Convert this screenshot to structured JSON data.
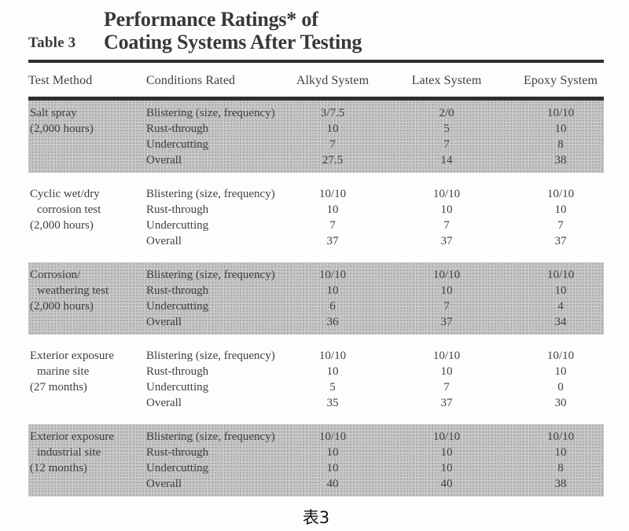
{
  "page": {
    "caption": "表3"
  },
  "colors": {
    "shade": "#c9c9c9",
    "rule": "#2f2f2f",
    "text": "#3f3f3f",
    "title": "#383838",
    "caption": "#141414",
    "paper": "#fdfdfd"
  },
  "table": {
    "label": "Table 3",
    "title_line1": "Performance Ratings* of",
    "title_line2": "Coating Systems After Testing",
    "columns": [
      "Test Method",
      "Conditions Rated",
      "Alkyd System",
      "Latex System",
      "Epoxy System"
    ],
    "sections": [
      {
        "test_method": "Salt spray (2,000 hours)",
        "method": [
          "Salt spray",
          "(2,000 hours)"
        ],
        "shaded": true,
        "rows": [
          [
            "Blistering (size, frequency)",
            "3/7.5",
            "2/0",
            "10/10"
          ],
          [
            "Rust-through",
            "10",
            "5",
            "10"
          ],
          [
            "Undercutting",
            "7",
            "7",
            "8"
          ],
          [
            "Overall",
            "27.5",
            "14",
            "38"
          ]
        ]
      },
      {
        "test_method": "Cyclic wet/dry corrosion test (2,000 hours)",
        "method": [
          "Cyclic wet/dry",
          "corrosion test",
          "(2,000 hours)"
        ],
        "shaded": false,
        "rows": [
          [
            "Blistering (size, frequency)",
            "10/10",
            "10/10",
            "10/10"
          ],
          [
            "Rust-through",
            "10",
            "10",
            "10"
          ],
          [
            "Undercutting",
            "7",
            "7",
            "7"
          ],
          [
            "Overall",
            "37",
            "37",
            "37"
          ]
        ]
      },
      {
        "test_method": "Corrosion/ weathering test (2,000 hours)",
        "method": [
          "Corrosion/",
          "weathering test",
          "(2,000 hours)"
        ],
        "shaded": true,
        "rows": [
          [
            "Blistering (size, frequency)",
            "10/10",
            "10/10",
            "10/10"
          ],
          [
            "Rust-through",
            "10",
            "10",
            "10"
          ],
          [
            "Undercutting",
            "6",
            "7",
            "4"
          ],
          [
            "Overall",
            "36",
            "37",
            "34"
          ]
        ]
      },
      {
        "test_method": "Exterior exposure marine site (27 months)",
        "method": [
          "Exterior exposure",
          "marine site",
          "(27 months)"
        ],
        "shaded": false,
        "rows": [
          [
            "Blistering (size, frequency)",
            "10/10",
            "10/10",
            "10/10"
          ],
          [
            "Rust-through",
            "10",
            "10",
            "10"
          ],
          [
            "Undercutting",
            "5",
            "7",
            "0"
          ],
          [
            "Overall",
            "35",
            "37",
            "30"
          ]
        ]
      },
      {
        "test_method": "Exterior exposure industrial site (12 months)",
        "method": [
          "Exterior exposure",
          "industrial site",
          "(12 months)"
        ],
        "shaded": true,
        "rows": [
          [
            "Blistering (size, frequency)",
            "10/10",
            "10/10",
            "10/10"
          ],
          [
            "Rust-through",
            "10",
            "10",
            "10"
          ],
          [
            "Undercutting",
            "10",
            "10",
            "8"
          ],
          [
            "Overall",
            "40",
            "40",
            "38"
          ]
        ]
      }
    ]
  }
}
